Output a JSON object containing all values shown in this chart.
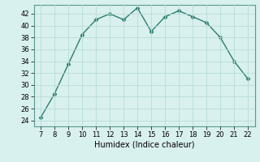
{
  "x": [
    7,
    8,
    9,
    10,
    11,
    12,
    13,
    14,
    15,
    16,
    17,
    18,
    19,
    20,
    21,
    22
  ],
  "y": [
    24.5,
    28.5,
    33.5,
    38.5,
    41,
    42,
    41,
    43,
    39,
    41.5,
    42.5,
    41.5,
    40.5,
    38,
    34,
    31
  ],
  "line_color": "#2e7d6e",
  "marker": "D",
  "marker_size": 2.5,
  "bg_color": "#d8f0ee",
  "grid_color": "#b8dcd8",
  "xlabel": "Humidex (Indice chaleur)",
  "xlim": [
    6.5,
    22.5
  ],
  "ylim": [
    23,
    43.5
  ],
  "xticks": [
    7,
    8,
    9,
    10,
    11,
    12,
    13,
    14,
    15,
    16,
    17,
    18,
    19,
    20,
    21,
    22
  ],
  "yticks": [
    24,
    26,
    28,
    30,
    32,
    34,
    36,
    38,
    40,
    42
  ]
}
